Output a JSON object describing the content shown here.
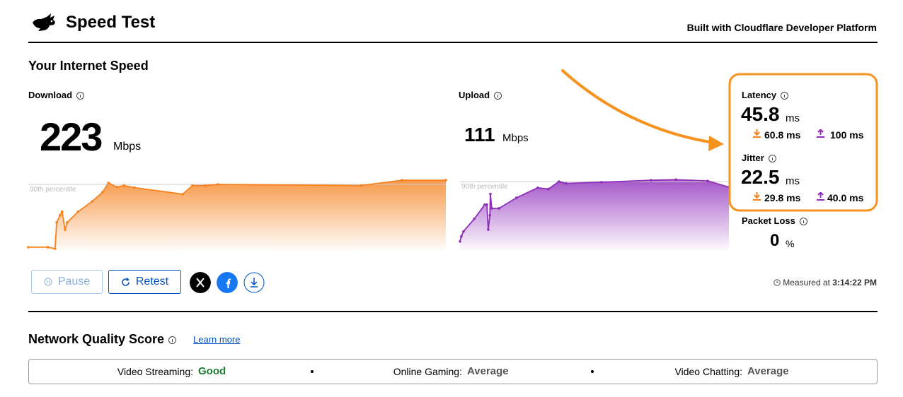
{
  "header": {
    "title": "Speed Test",
    "credit": "Built with Cloudflare Developer Platform"
  },
  "section_title": "Your Internet Speed",
  "download": {
    "label": "Download",
    "value": 223,
    "unit": "Mbps",
    "percentile_label": "90th percentile",
    "color": "#f6821f",
    "x": [
      0,
      4.7,
      6.4,
      6.8,
      7.6,
      8.1,
      8.8,
      9.3,
      11.9,
      15.3,
      17.8,
      19.2,
      21.2,
      22.9,
      25.4,
      37,
      39.3,
      42.4,
      45.4,
      79.7,
      89.5,
      100
    ],
    "values": [
      12,
      12,
      7,
      95,
      119,
      131,
      71,
      95,
      131,
      166,
      197,
      228,
      214,
      219,
      212,
      190,
      219,
      219,
      223,
      219,
      237,
      237
    ]
  },
  "upload": {
    "label": "Upload",
    "value": 111,
    "unit": "Mbps",
    "percentile_label": "90th percentile",
    "color": "#8e2dba",
    "x": [
      0,
      0.5,
      1.3,
      5.3,
      9.2,
      10,
      10.5,
      11.1,
      11.3,
      11.8,
      14.5,
      21,
      28.9,
      32.9,
      36.8,
      39.5,
      52.6,
      71,
      80.3,
      92.1,
      100
    ],
    "values": [
      15,
      23,
      31,
      51,
      74,
      74,
      34,
      57,
      91,
      68,
      68,
      85,
      101,
      99,
      111,
      108,
      110,
      113,
      114,
      112,
      102
    ]
  },
  "latency": {
    "label": "Latency",
    "value": 45.8,
    "unit": "ms",
    "down": 60.8,
    "down_unit": "ms",
    "up": 100,
    "up_unit": "ms"
  },
  "jitter": {
    "label": "Jitter",
    "value": 22.5,
    "unit": "ms",
    "down": 29.8,
    "down_unit": "ms",
    "up": "40.0",
    "up_unit": "ms"
  },
  "packet_loss": {
    "label": "Packet Loss",
    "value": 0,
    "unit": "%"
  },
  "buttons": {
    "pause": "Pause",
    "retest": "Retest"
  },
  "measured": {
    "label": "Measured at",
    "time": "3:14:22 PM"
  },
  "quality": {
    "title": "Network Quality Score",
    "link": "Learn more",
    "items": [
      {
        "label": "Video Streaming:",
        "rating": "Good"
      },
      {
        "label": "Online Gaming:",
        "rating": "Average"
      },
      {
        "label": "Video Chatting:",
        "rating": "Average"
      }
    ]
  }
}
